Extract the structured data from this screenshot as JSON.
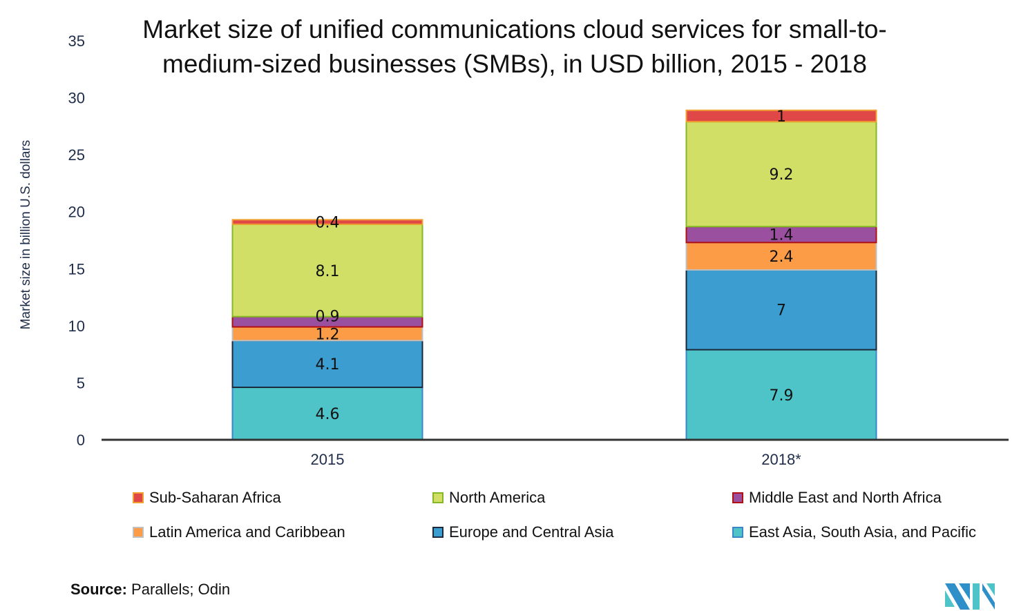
{
  "chart_data": {
    "type": "bar",
    "stacked": true,
    "title": "Market size of unified communications cloud services for small-to-medium-sized businesses (SMBs), in USD billion, 2015 - 2018",
    "xlabel": "",
    "ylabel": "Market size in billion U.S. dollars",
    "ylim": [
      0,
      35
    ],
    "yticks": [
      "0",
      "5",
      "10",
      "15",
      "20",
      "25",
      "30",
      "35"
    ],
    "categories": [
      "2015",
      "2018*"
    ],
    "series": [
      {
        "name": "East Asia, South Asia, and Pacific",
        "values": [
          4.6,
          7.9
        ],
        "labels": [
          "4.6",
          "7.9"
        ],
        "color": "#4fc4c8",
        "border": "#3a86c8"
      },
      {
        "name": "Europe and Central Asia",
        "values": [
          4.1,
          7
        ],
        "labels": [
          "4.1",
          "7"
        ],
        "color": "#3c9dd0",
        "border": "#1a2a3a"
      },
      {
        "name": "Latin America and Caribbean",
        "values": [
          1.2,
          2.4
        ],
        "labels": [
          "1.2",
          "2.4"
        ],
        "color": "#fc9c46",
        "border": "#c0c0c0"
      },
      {
        "name": "Middle East and North Africa",
        "values": [
          0.9,
          1.4
        ],
        "labels": [
          "0.9",
          "1.4"
        ],
        "color": "#9b4f9f",
        "border": "#b01010"
      },
      {
        "name": "North America",
        "values": [
          8.1,
          9.2
        ],
        "labels": [
          "8.1",
          "9.2"
        ],
        "color": "#d2df67",
        "border": "#84b824"
      },
      {
        "name": "Sub-Saharan Africa",
        "values": [
          0.4,
          1
        ],
        "labels": [
          "0.4",
          "1"
        ],
        "color": "#e04848",
        "border": "#f0a030"
      }
    ],
    "legend_order": [
      5,
      4,
      3,
      2,
      1,
      0
    ],
    "legend_position": "bottom",
    "grid": false
  },
  "source": {
    "label": "Source:",
    "text": " Parallels; Odin"
  }
}
